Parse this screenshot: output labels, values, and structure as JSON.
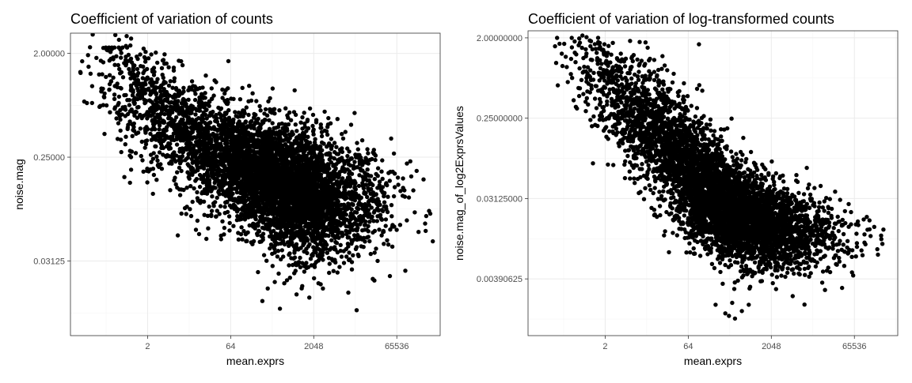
{
  "chart_data": [
    {
      "type": "scatter",
      "title": "Coefficient of variation of counts",
      "xlabel": "mean.exprs",
      "ylabel": "noise.mag",
      "x_scale": "log2",
      "y_scale": "log2",
      "x_ticks": [
        2,
        64,
        2048,
        65536
      ],
      "x_tick_labels": [
        "2",
        "64",
        "2048",
        "65536"
      ],
      "y_ticks": [
        0.03125,
        0.25,
        2.0
      ],
      "y_tick_labels": [
        "0.03125",
        "0.25000",
        "2.00000"
      ],
      "xlim": [
        0.08,
        400000
      ],
      "ylim": [
        0.007,
        3.0
      ],
      "grid": true,
      "point_color": "#000000",
      "cloud": {
        "points": [
          [
            0.35,
            2.25
          ],
          [
            0.4,
            2.25
          ],
          [
            0.45,
            2.25
          ],
          [
            0.5,
            2.25
          ],
          [
            0.6,
            2.25
          ],
          [
            0.7,
            2.25
          ],
          [
            0.85,
            2.25
          ],
          [
            0.8,
            1.75
          ],
          [
            0.9,
            1.72
          ],
          [
            1.0,
            1.8
          ],
          [
            1.1,
            1.5
          ],
          [
            1.3,
            1.3
          ],
          [
            1.5,
            1.55
          ],
          [
            1.4,
            1.1
          ],
          [
            2.0,
            1.2
          ],
          [
            1.8,
            0.9
          ],
          [
            2.5,
            0.6
          ],
          [
            3.0,
            0.75
          ],
          [
            4.0,
            0.5
          ],
          [
            1.3,
            0.55
          ],
          [
            1.0,
            1.05
          ],
          [
            6.0,
            0.45
          ],
          [
            8.0,
            0.35
          ],
          [
            3.5,
            0.4
          ],
          [
            40,
            0.6
          ],
          [
            60,
            0.55
          ],
          [
            90,
            0.5
          ],
          [
            150,
            0.45
          ],
          [
            250,
            0.5
          ],
          [
            400,
            0.6
          ],
          [
            700,
            0.55
          ],
          [
            1200,
            0.5
          ],
          [
            2000,
            0.42
          ],
          [
            2800,
            0.45
          ],
          [
            3500,
            0.42
          ],
          [
            9000,
            0.28
          ],
          [
            14000,
            0.25
          ],
          [
            20000,
            0.22
          ],
          [
            30000,
            0.2
          ],
          [
            60000,
            0.18
          ],
          [
            100000,
            0.22
          ],
          [
            120000,
            0.17
          ],
          [
            150000,
            0.19
          ],
          [
            200000,
            0.16
          ],
          [
            22000,
            0.12
          ],
          [
            1.0,
            0.25
          ],
          [
            2.5,
            0.12
          ],
          [
            10,
            0.08
          ],
          [
            16,
            0.07
          ],
          [
            25,
            0.06
          ],
          [
            40,
            0.08
          ],
          [
            12,
            0.14
          ],
          [
            18,
            0.1
          ],
          [
            240,
            0.014
          ],
          [
            500,
            0.012
          ],
          [
            300,
            0.018
          ],
          [
            600,
            0.02
          ],
          [
            200,
            0.025
          ],
          [
            1500,
            0.03
          ],
          [
            2500,
            0.02
          ],
          [
            3000,
            0.018
          ],
          [
            1000,
            0.016
          ],
          [
            1700,
            0.015
          ]
        ],
        "clusters": [
          {
            "cx": 0.9,
            "cy": 1.1,
            "sx": 1.4,
            "sy": 1.0,
            "n": 120
          },
          {
            "cx": 3.0,
            "cy": 0.65,
            "sx": 1.6,
            "sy": 0.9,
            "n": 300
          },
          {
            "cx": 15,
            "cy": 0.38,
            "sx": 1.9,
            "sy": 0.95,
            "n": 600
          },
          {
            "cx": 100,
            "cy": 0.2,
            "sx": 2.0,
            "sy": 1.0,
            "n": 1000
          },
          {
            "cx": 600,
            "cy": 0.13,
            "sx": 1.7,
            "sy": 1.05,
            "n": 2400
          },
          {
            "cx": 2500,
            "cy": 0.13,
            "sx": 1.8,
            "sy": 1.0,
            "n": 900
          },
          {
            "cx": 12000,
            "cy": 0.15,
            "sx": 1.7,
            "sy": 0.9,
            "n": 250
          }
        ]
      }
    },
    {
      "type": "scatter",
      "title": "Coefficient of variation of log-transformed counts",
      "xlabel": "mean.exprs",
      "ylabel": "noise.mag_of_log2ExprsValues",
      "x_scale": "log2",
      "y_scale": "log2",
      "x_ticks": [
        2,
        64,
        2048,
        65536
      ],
      "x_tick_labels": [
        "2",
        "64",
        "2048",
        "65536"
      ],
      "y_ticks": [
        0.00390625,
        0.03125,
        0.25,
        2.0
      ],
      "y_tick_labels": [
        "0.00390625",
        "0.03125000",
        "0.25000000",
        "2.00000000"
      ],
      "xlim": [
        0.08,
        400000
      ],
      "ylim": [
        0.0009,
        2.4
      ],
      "grid": true,
      "point_color": "#000000",
      "cloud": {
        "points": [
          [
            1.3,
            1.7
          ],
          [
            1.6,
            1.75
          ],
          [
            1.9,
            1.3
          ],
          [
            2.1,
            1.1
          ],
          [
            2.3,
            1.05
          ],
          [
            2.6,
            0.85
          ],
          [
            3.0,
            0.7
          ],
          [
            2.0,
            0.55
          ],
          [
            4.0,
            0.6
          ],
          [
            6.0,
            0.45
          ],
          [
            8.0,
            0.5
          ],
          [
            12,
            0.38
          ],
          [
            20,
            0.3
          ],
          [
            30,
            0.3
          ],
          [
            10,
            0.2
          ],
          [
            3.5,
            0.25
          ],
          [
            6.0,
            0.12
          ],
          [
            5.0,
            0.15
          ],
          [
            700,
            0.08
          ],
          [
            1500,
            0.07
          ],
          [
            2500,
            0.06
          ],
          [
            4000,
            0.04
          ],
          [
            8000,
            0.035
          ],
          [
            15000,
            0.025
          ],
          [
            25000,
            0.02
          ],
          [
            40000,
            0.018
          ],
          [
            70000,
            0.016
          ],
          [
            150000,
            0.015
          ],
          [
            200000,
            0.012
          ],
          [
            220000,
            0.014
          ],
          [
            100000,
            0.01
          ],
          [
            200,
            0.002
          ],
          [
            350,
            0.0015
          ],
          [
            300,
            0.0016
          ],
          [
            450,
            0.0014
          ],
          [
            600,
            0.0017
          ],
          [
            400,
            0.0021
          ],
          [
            800,
            0.002
          ],
          [
            5000,
            0.0025
          ],
          [
            2500,
            0.003
          ]
        ],
        "clusters": [
          {
            "cx": 3.0,
            "cy": 0.75,
            "sx": 1.5,
            "sy": 1.1,
            "n": 250
          },
          {
            "cx": 12,
            "cy": 0.25,
            "sx": 1.6,
            "sy": 1.0,
            "n": 600
          },
          {
            "cx": 60,
            "cy": 0.08,
            "sx": 1.7,
            "sy": 1.0,
            "n": 1100
          },
          {
            "cx": 400,
            "cy": 0.02,
            "sx": 1.7,
            "sy": 1.0,
            "n": 2200
          },
          {
            "cx": 2000,
            "cy": 0.016,
            "sx": 1.8,
            "sy": 0.95,
            "n": 1000
          },
          {
            "cx": 12000,
            "cy": 0.016,
            "sx": 1.6,
            "sy": 0.8,
            "n": 200
          }
        ]
      }
    }
  ]
}
